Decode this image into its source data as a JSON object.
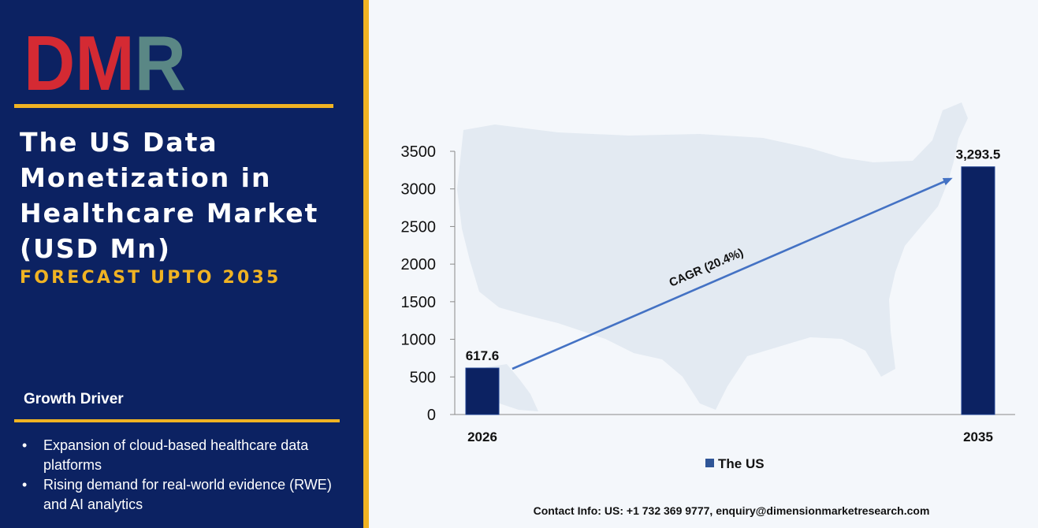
{
  "brand": {
    "logo_text": "DMR",
    "logo_colors": {
      "dm": "#d42a33",
      "r": "#5a8785"
    }
  },
  "sidebar": {
    "title": "The US Data Monetization in Healthcare Market (USD Mn)",
    "subtitle": "FORECAST UPTO 2035",
    "growth_driver": {
      "heading": "Growth Driver",
      "items": [
        "Expansion of cloud-based healthcare data platforms",
        "Rising demand for real-world evidence (RWE) and AI analytics"
      ]
    }
  },
  "contact": {
    "label": "Contact Info:",
    "text": "US: +1 732 369 9777, enquiry@dimensionmarketresearch.com"
  },
  "colors": {
    "navy": "#0c2262",
    "gold": "#f0b323",
    "bar": "#0c2262",
    "arrow": "#4472c4"
  },
  "chart_data": {
    "type": "bar",
    "categories": [
      "2026",
      "2035"
    ],
    "series": [
      {
        "name": "The US",
        "values": [
          617.6,
          3293.5
        ]
      }
    ],
    "data_labels": [
      "617.6",
      "3,293.5"
    ],
    "yticks": [
      "0",
      "500",
      "1000",
      "1500",
      "2000",
      "2500",
      "3000",
      "3500"
    ],
    "ylim": [
      0,
      3500
    ],
    "annotation": "CAGR (20.4%)",
    "legend_position": "bottom-center",
    "grid": false
  }
}
